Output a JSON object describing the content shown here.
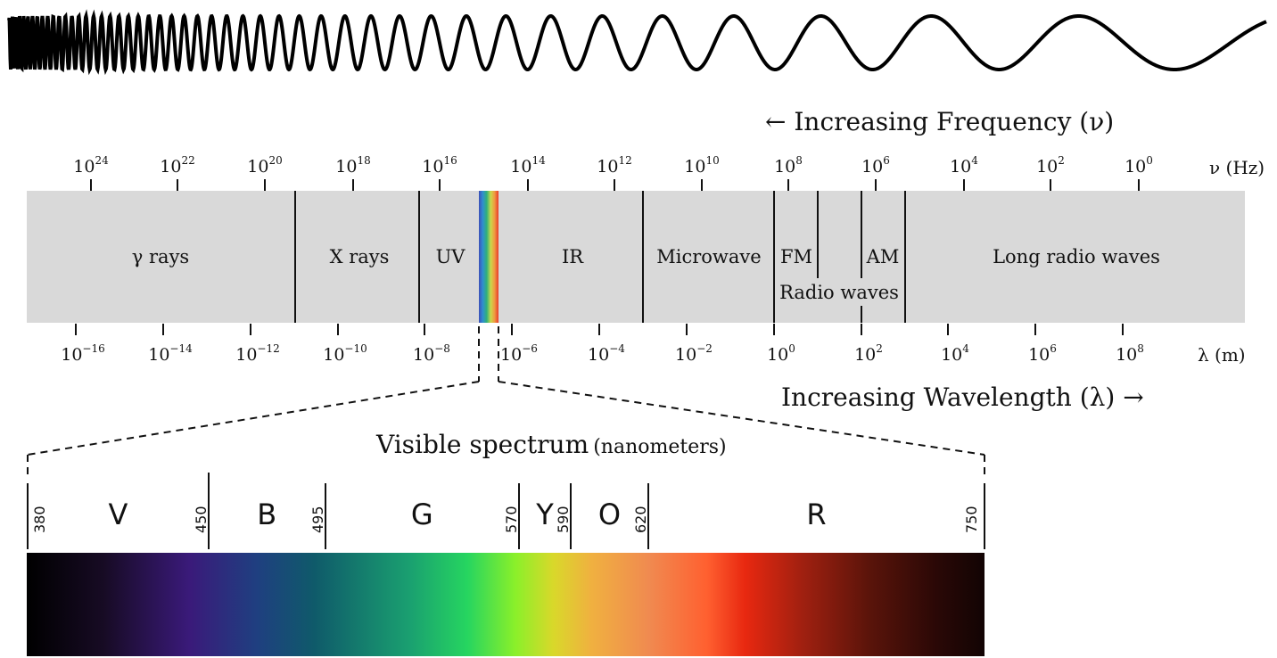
{
  "frequency_arrow_label": "← Increasing Frequency (ν)",
  "wavelength_arrow_label": "Increasing Wavelength (λ) →",
  "frequency_axis": {
    "unit": "ν (Hz)",
    "ticks": [
      {
        "base": "10",
        "exp": "24"
      },
      {
        "base": "10",
        "exp": "22"
      },
      {
        "base": "10",
        "exp": "20"
      },
      {
        "base": "10",
        "exp": "18"
      },
      {
        "base": "10",
        "exp": "16"
      },
      {
        "base": "10",
        "exp": "14"
      },
      {
        "base": "10",
        "exp": "12"
      },
      {
        "base": "10",
        "exp": "10"
      },
      {
        "base": "10",
        "exp": "8"
      },
      {
        "base": "10",
        "exp": "6"
      },
      {
        "base": "10",
        "exp": "4"
      },
      {
        "base": "10",
        "exp": "2"
      },
      {
        "base": "10",
        "exp": "0"
      }
    ]
  },
  "wavelength_axis": {
    "unit": "λ (m)",
    "ticks": [
      {
        "base": "10",
        "exp": "−16"
      },
      {
        "base": "10",
        "exp": "−14"
      },
      {
        "base": "10",
        "exp": "−12"
      },
      {
        "base": "10",
        "exp": "−10"
      },
      {
        "base": "10",
        "exp": "−8"
      },
      {
        "base": "10",
        "exp": "−6"
      },
      {
        "base": "10",
        "exp": "−4"
      },
      {
        "base": "10",
        "exp": "−2"
      },
      {
        "base": "10",
        "exp": "0"
      },
      {
        "base": "10",
        "exp": "2"
      },
      {
        "base": "10",
        "exp": "4"
      },
      {
        "base": "10",
        "exp": "6"
      },
      {
        "base": "10",
        "exp": "8"
      }
    ]
  },
  "bands": {
    "gamma": "γ rays",
    "xray": "X rays",
    "uv": "UV",
    "ir": "IR",
    "microwave": "Microwave",
    "fm": "FM",
    "am": "AM",
    "radio": "Radio waves",
    "long_radio": "Long radio waves"
  },
  "visible": {
    "title": "Visible spectrum",
    "title_unit": "(nanometers)",
    "boundaries": [
      "380",
      "450",
      "495",
      "570",
      "590",
      "620",
      "750"
    ],
    "colors": [
      "V",
      "B",
      "G",
      "Y",
      "O",
      "R"
    ]
  }
}
